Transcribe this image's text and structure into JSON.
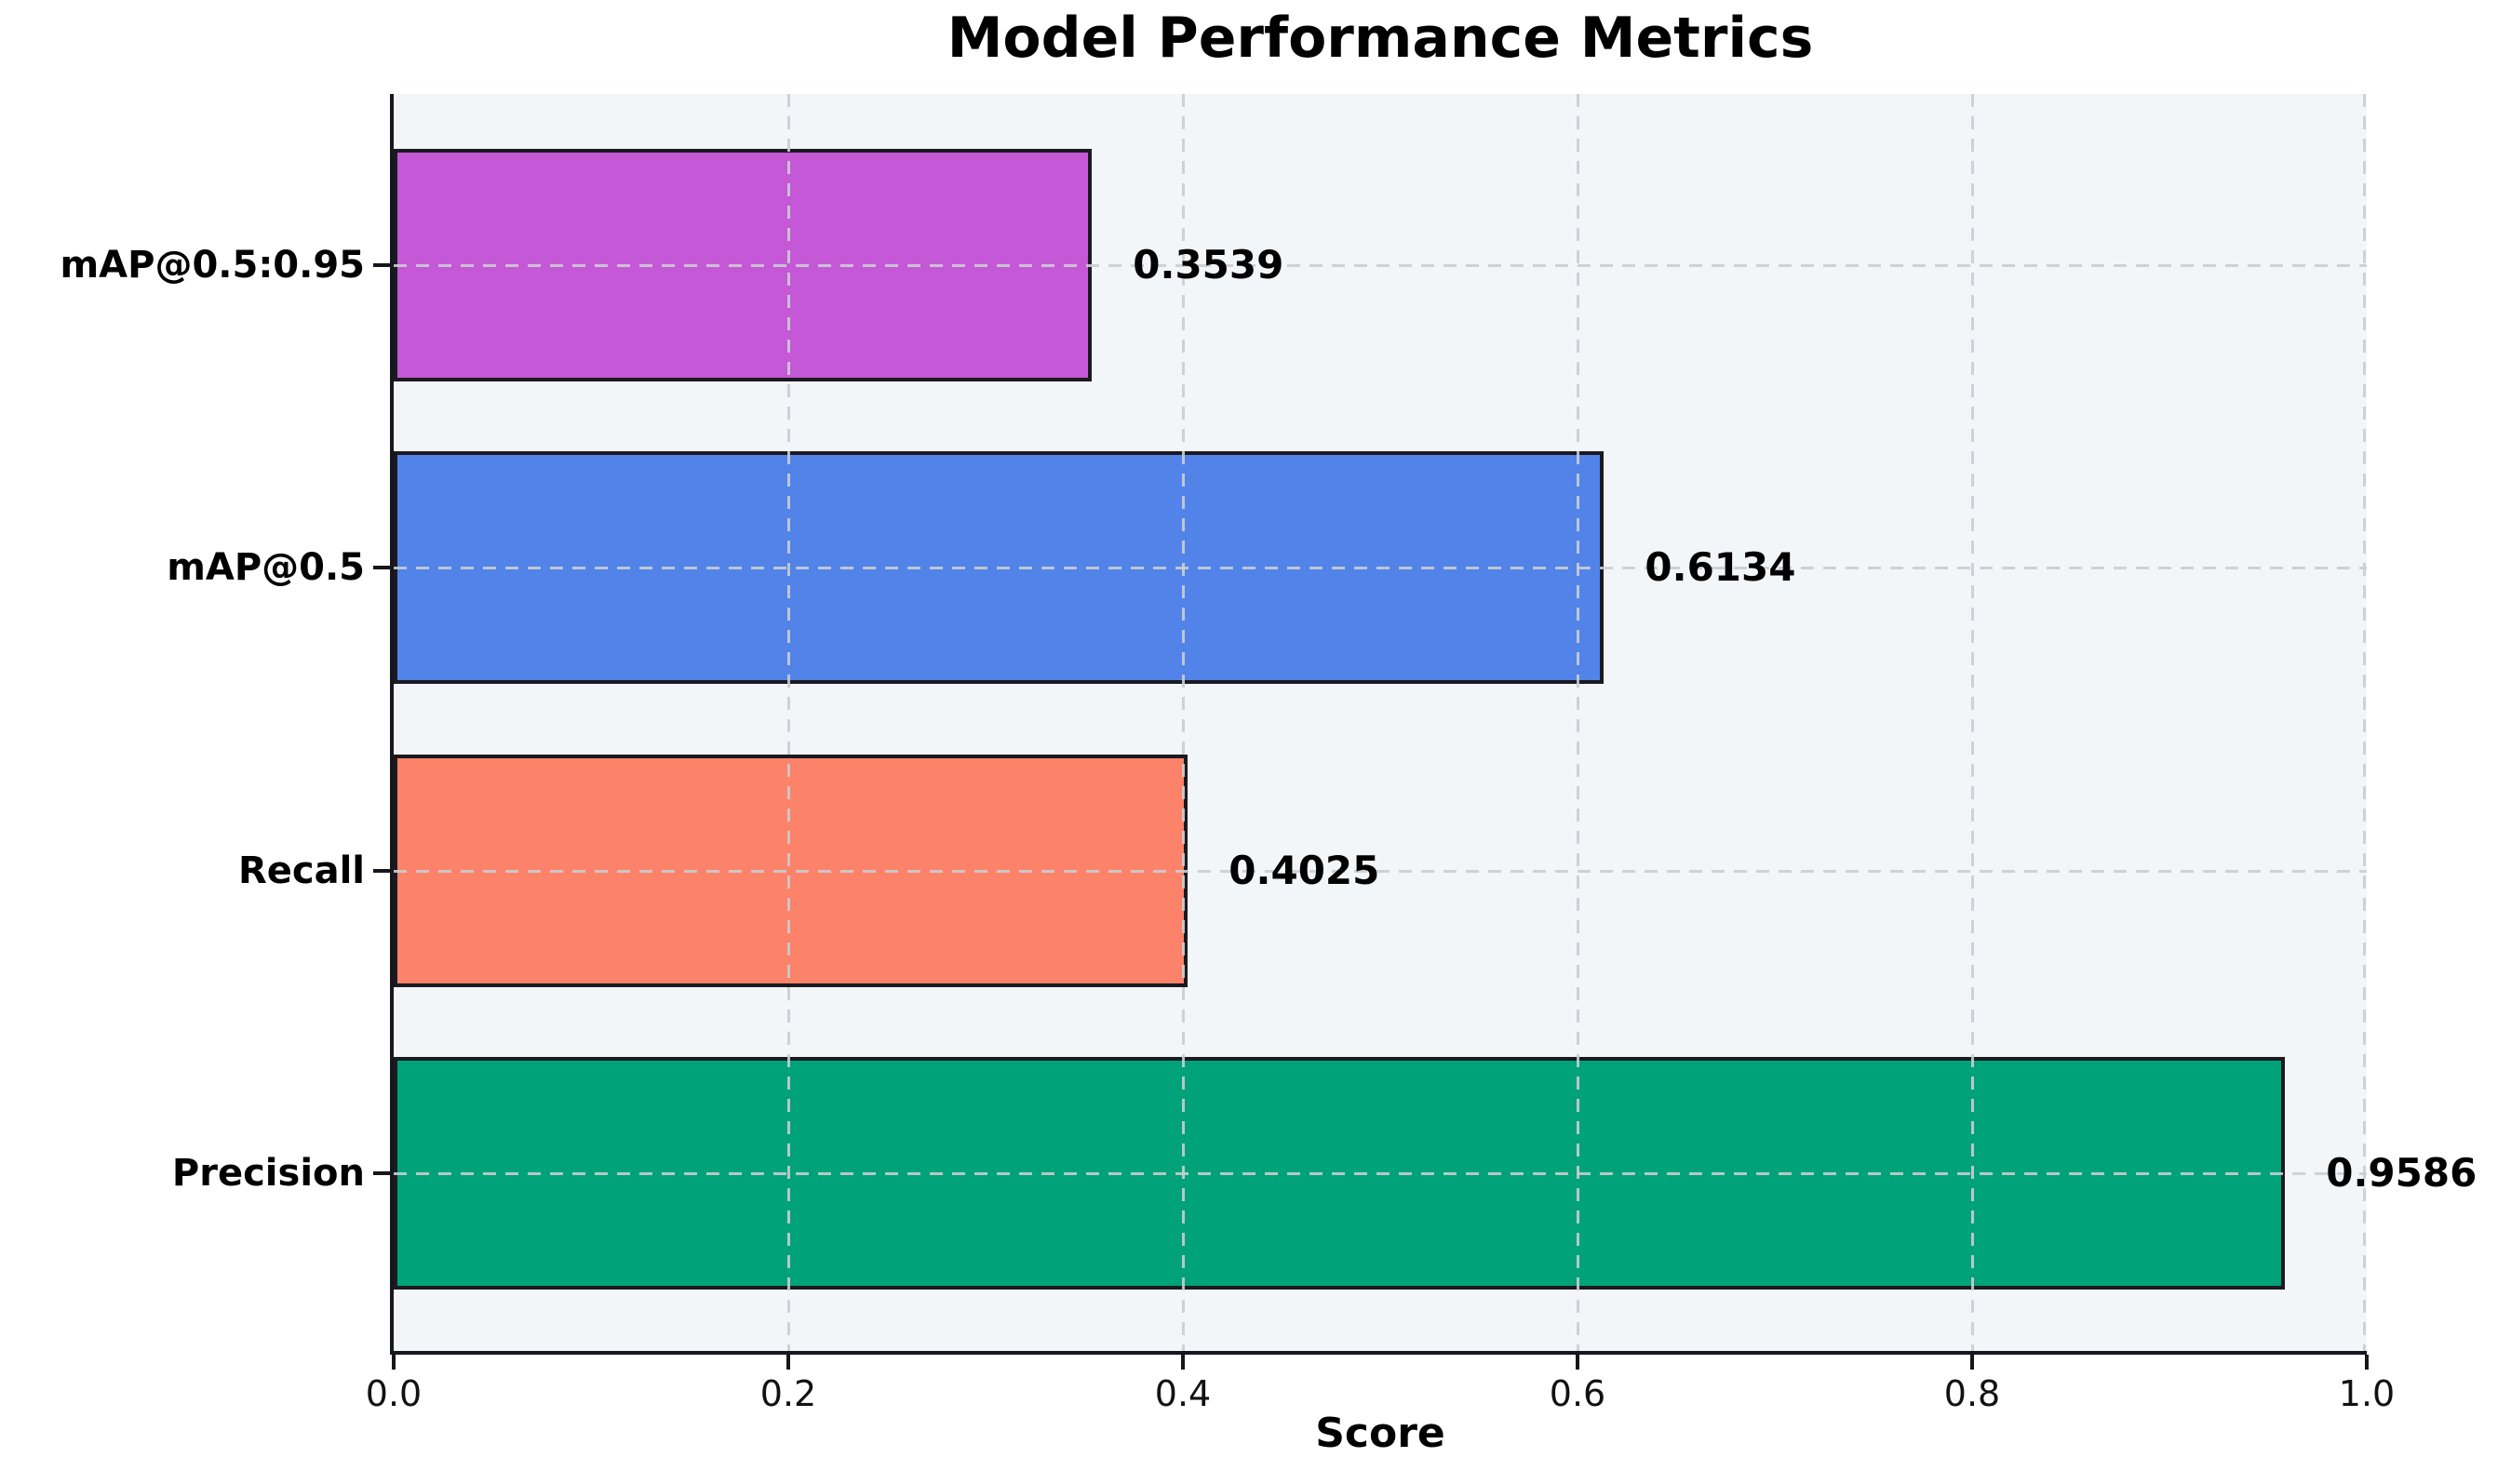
{
  "chart_data": {
    "type": "bar",
    "orientation": "horizontal",
    "title": "Model Performance Metrics",
    "xlabel": "Score",
    "ylabel": "",
    "categories_top_to_bottom": [
      "mAP@0.5:0.95",
      "mAP@0.5",
      "Recall",
      "Precision"
    ],
    "values_top_to_bottom": [
      0.3539,
      0.6134,
      0.4025,
      0.9586
    ],
    "value_labels_top_to_bottom": [
      "0.3539",
      "0.6134",
      "0.4025",
      "0.9586"
    ],
    "bar_colors_top_to_bottom": [
      "#c558d6",
      "#5283e8",
      "#fc8269",
      "#00a27a"
    ],
    "bar_edge_color": "#1a1a20",
    "xlim": [
      0.0,
      1.0
    ],
    "xtick_labels": [
      "0.0",
      "0.2",
      "0.4",
      "0.6",
      "0.8",
      "1.0"
    ],
    "xtick_values": [
      0.0,
      0.2,
      0.4,
      0.6,
      0.8,
      1.0
    ],
    "grid": "dashed, drawn over bars, both axes",
    "plot_background": "#f3f6f9",
    "figure_background": "#ffffff",
    "gridline_color": "#cacdd1",
    "legend": "none"
  }
}
